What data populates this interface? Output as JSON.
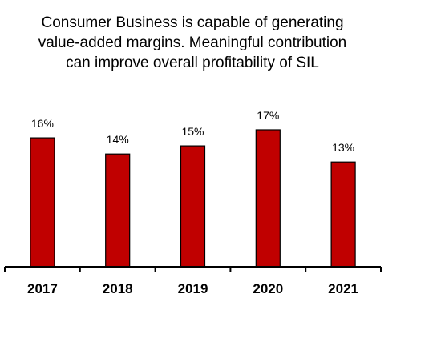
{
  "chart_data": {
    "type": "bar",
    "title_lines": [
      "Consumer Business is capable of generating",
      "value-added margins. Meaningful contribution",
      "can improve overall profitability of SIL"
    ],
    "categories": [
      "2017",
      "2018",
      "2019",
      "2020",
      "2021"
    ],
    "values": [
      16,
      14,
      15,
      17,
      13
    ],
    "data_labels": [
      "16%",
      "14%",
      "15%",
      "17%",
      "13%"
    ],
    "unit": "%",
    "xlabel": "",
    "ylabel": "",
    "ylim": [
      0,
      17
    ],
    "grid": false,
    "legend": "none",
    "colors": {
      "bar_fill": "#c00000",
      "bar_stroke": "#000000",
      "axis": "#000000"
    }
  }
}
